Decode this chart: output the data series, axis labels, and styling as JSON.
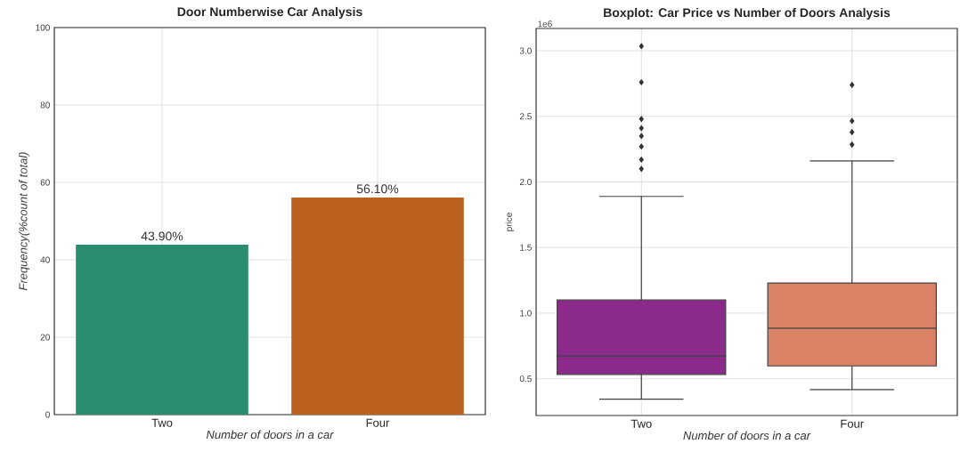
{
  "chart_data": [
    {
      "type": "bar",
      "title": "Door Numberwise Car Analysis",
      "xlabel": "Number of doors in a car",
      "ylabel": "Frequency(%count of total)",
      "categories": [
        "Two",
        "Four"
      ],
      "values": [
        43.9,
        56.1
      ],
      "colors": [
        "#2c8c6f",
        "#bc6220"
      ],
      "value_labels": [
        "43.90%",
        "56.10%"
      ],
      "ylim": [
        0,
        100
      ],
      "yticks": [
        0,
        20,
        40,
        60,
        80,
        100
      ],
      "grid": true
    },
    {
      "type": "box",
      "title": "Boxplot: Car Price vs Number of Doors Analysis",
      "xlabel": "Number of doors in a car",
      "ylabel": "price",
      "categories": [
        "Two",
        "Four"
      ],
      "colors": [
        "#8b2a8b",
        "#d98266"
      ],
      "boxes": [
        {
          "low": 0.345,
          "q1": 0.533,
          "median": 0.673,
          "q3": 1.1,
          "high": 1.89,
          "outliers": [
            3.035,
            2.76,
            2.48,
            2.41,
            2.35,
            2.27,
            2.17,
            2.1
          ]
        },
        {
          "low": 0.418,
          "q1": 0.598,
          "median": 0.886,
          "q3": 1.23,
          "high": 2.16,
          "outliers": [
            2.74,
            2.465,
            2.38,
            2.285
          ]
        }
      ],
      "marker": "diamond",
      "ylim": [
        0.22,
        3.17
      ],
      "yticks": [
        0.5,
        {
          "value": 1,
          "label": "1.0"
        },
        1.5,
        {
          "value": 2,
          "label": "2.0"
        },
        2.5,
        {
          "value": 3,
          "label": "3.0"
        }
      ],
      "annotations": [
        "1e6"
      ],
      "grid": true
    }
  ]
}
